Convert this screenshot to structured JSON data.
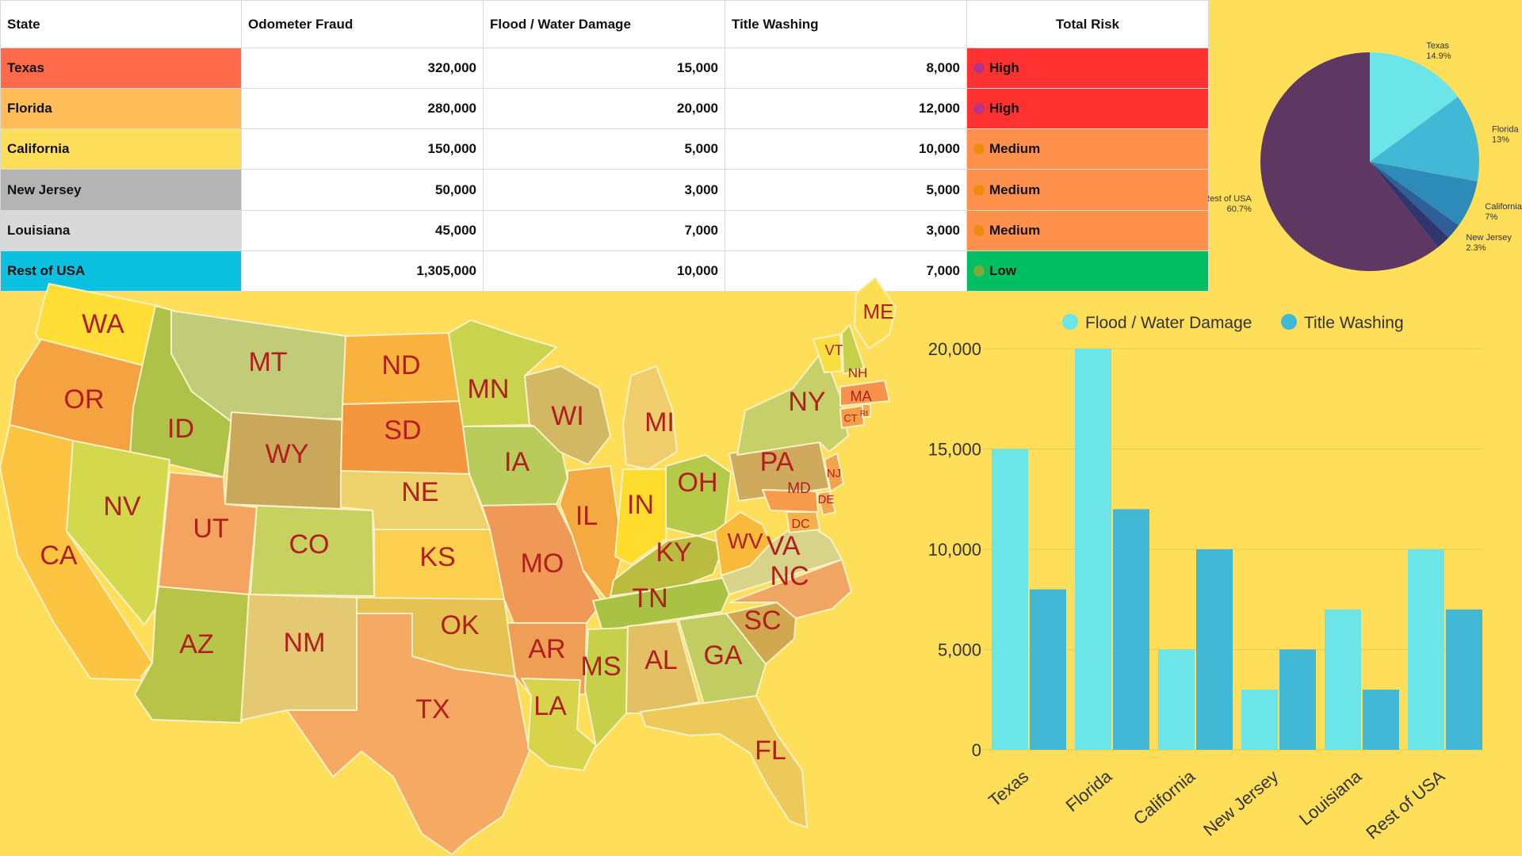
{
  "table": {
    "headers": [
      "State",
      "Odometer Fraud",
      "Flood / Water Damage",
      "Title Washing",
      "Total Risk"
    ],
    "rows": [
      {
        "state": "Texas",
        "odometer": "320,000",
        "flood": "15,000",
        "title": "8,000",
        "risk": "High",
        "state_color": "#FF6B4A",
        "risk_color": "#FF3131",
        "dot_color": "#B5348A"
      },
      {
        "state": "Florida",
        "odometer": "280,000",
        "flood": "20,000",
        "title": "12,000",
        "risk": "High",
        "state_color": "#FFBD59",
        "risk_color": "#FF3131",
        "dot_color": "#B5348A"
      },
      {
        "state": "California",
        "odometer": "150,000",
        "flood": "5,000",
        "title": "10,000",
        "risk": "Medium",
        "state_color": "#FFDE59",
        "risk_color": "#FF914D",
        "dot_color": "#F28B0C"
      },
      {
        "state": "New Jersey",
        "odometer": "50,000",
        "flood": "3,000",
        "title": "5,000",
        "risk": "Medium",
        "state_color": "#B4B4B4",
        "risk_color": "#FF914D",
        "dot_color": "#F28B0C"
      },
      {
        "state": "Louisiana",
        "odometer": "45,000",
        "flood": "7,000",
        "title": "3,000",
        "risk": "Medium",
        "state_color": "#D9D9D9",
        "risk_color": "#FF914D",
        "dot_color": "#F28B0C"
      },
      {
        "state": "Rest of USA",
        "odometer": "1,305,000",
        "flood": "10,000",
        "title": "7,000",
        "risk": "Low",
        "state_color": "#0CC0DF",
        "risk_color": "#00BF63",
        "dot_color": "#7DAA3A"
      }
    ]
  },
  "chart_data": [
    {
      "type": "pie",
      "slices": [
        {
          "label": "Texas",
          "pct_label": "14.9%",
          "value": 14.9,
          "color": "#6CE5E8"
        },
        {
          "label": "Florida",
          "pct_label": "13%",
          "value": 13,
          "color": "#41B8D5"
        },
        {
          "label": "California",
          "pct_label": "7%",
          "value": 7,
          "color": "#2D8BBA"
        },
        {
          "label": "New Jersey",
          "pct_label": "2.3%",
          "value": 2.3,
          "color": "#2F5F98"
        },
        {
          "label": "",
          "pct_label": "",
          "value": 2.1,
          "color": "#31356E"
        },
        {
          "label": "Rest of USA",
          "pct_label": "60.7%",
          "value": 60.7,
          "color": "#5E3863"
        }
      ]
    },
    {
      "type": "bar",
      "categories": [
        "Texas",
        "Florida",
        "California",
        "New Jersey",
        "Louisiana",
        "Rest of USA"
      ],
      "series": [
        {
          "name": "Flood / Water Damage",
          "values": [
            15000,
            20000,
            5000,
            3000,
            7000,
            10000
          ],
          "color": "#6CE5E8"
        },
        {
          "name": "Title Washing",
          "values": [
            8000,
            12000,
            10000,
            5000,
            3000,
            7000
          ],
          "color": "#41B8D5"
        }
      ],
      "ylim": [
        0,
        20000
      ],
      "yticks": [
        "0",
        "5,000",
        "10,000",
        "15,000",
        "20,000"
      ],
      "grid": true,
      "legend": "top"
    }
  ],
  "map": {
    "states": [
      {
        "abbr": "WA",
        "color": "#FFDE36"
      },
      {
        "abbr": "OR",
        "color": "#F5A340"
      },
      {
        "abbr": "CA",
        "color": "#FCC440"
      },
      {
        "abbr": "ID",
        "color": "#AEC247"
      },
      {
        "abbr": "NV",
        "color": "#D3D84C"
      },
      {
        "abbr": "MT",
        "color": "#C2CC78"
      },
      {
        "abbr": "WY",
        "color": "#C9A85C"
      },
      {
        "abbr": "UT",
        "color": "#F5A460"
      },
      {
        "abbr": "AZ",
        "color": "#B8C447"
      },
      {
        "abbr": "CO",
        "color": "#C6D160"
      },
      {
        "abbr": "NM",
        "color": "#E5C872"
      },
      {
        "abbr": "ND",
        "color": "#F9B23F"
      },
      {
        "abbr": "SD",
        "color": "#F4963E"
      },
      {
        "abbr": "NE",
        "color": "#EDD26C"
      },
      {
        "abbr": "KS",
        "color": "#FCD04E"
      },
      {
        "abbr": "OK",
        "color": "#E5C252"
      },
      {
        "abbr": "TX",
        "color": "#F6A962"
      },
      {
        "abbr": "MN",
        "color": "#C9D34E"
      },
      {
        "abbr": "IA",
        "color": "#B9CB5A"
      },
      {
        "abbr": "MO",
        "color": "#F09956"
      },
      {
        "abbr": "AR",
        "color": "#EE9E55"
      },
      {
        "abbr": "LA",
        "color": "#D7D44C"
      },
      {
        "abbr": "WI",
        "color": "#D2B862"
      },
      {
        "abbr": "IL",
        "color": "#F5A941"
      },
      {
        "abbr": "MI",
        "color": "#EFCD6A"
      },
      {
        "abbr": "IN",
        "color": "#FFDD2E"
      },
      {
        "abbr": "OH",
        "color": "#B5CA48"
      },
      {
        "abbr": "KY",
        "color": "#B9BC3E"
      },
      {
        "abbr": "TN",
        "color": "#A9C243"
      },
      {
        "abbr": "MS",
        "color": "#C6D04A"
      },
      {
        "abbr": "AL",
        "color": "#E4C065"
      },
      {
        "abbr": "GA",
        "color": "#C1CC62"
      },
      {
        "abbr": "FL",
        "color": "#EDC95A"
      },
      {
        "abbr": "SC",
        "color": "#D1A750"
      },
      {
        "abbr": "NC",
        "color": "#EFA663"
      },
      {
        "abbr": "VA",
        "color": "#D7D48A"
      },
      {
        "abbr": "WV",
        "color": "#F9B93A"
      },
      {
        "abbr": "PA",
        "color": "#CFAA5C"
      },
      {
        "abbr": "NY",
        "color": "#C7D068"
      },
      {
        "abbr": "VT",
        "color": "#F8DE3E"
      },
      {
        "abbr": "NH",
        "color": "#C6D14B"
      },
      {
        "abbr": "ME",
        "color": "#FCDE52"
      },
      {
        "abbr": "MA",
        "color": "#F6924A"
      },
      {
        "abbr": "CT",
        "color": "#F59C48"
      },
      {
        "abbr": "RI",
        "color": "#F4A850"
      },
      {
        "abbr": "NJ",
        "color": "#F3A34E"
      },
      {
        "abbr": "DE",
        "color": "#F2A750"
      },
      {
        "abbr": "MD",
        "color": "#F69A4C"
      },
      {
        "abbr": "DC",
        "color": "#F5B24C"
      }
    ]
  },
  "colors": {
    "background": "#FFDE59",
    "label": "#B01E1E"
  }
}
